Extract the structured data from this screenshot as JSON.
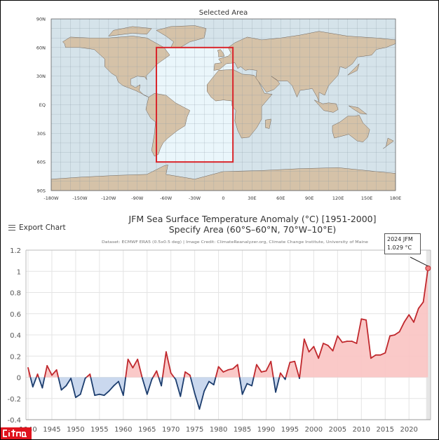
{
  "map": {
    "title": "Selected Area",
    "lat_labels": [
      "90N",
      "60N",
      "30N",
      "EQ",
      "30S",
      "60S",
      "90S"
    ],
    "lon_labels": [
      "-180W",
      "-150W",
      "-120W",
      "-90W",
      "-60W",
      "-30W",
      "0",
      "30E",
      "60E",
      "90E",
      "120E",
      "150E",
      "180E"
    ],
    "selection": {
      "lat_min": -60,
      "lat_max": 60,
      "lon_min": -70,
      "lon_max": 10
    },
    "colors": {
      "ocean": "#d5e3ea",
      "land": "#d5c2a8",
      "selection": "#d9242a"
    }
  },
  "toolbar": {
    "export_label": "Export Chart"
  },
  "watermark": "citna",
  "chart_data": {
    "type": "area",
    "title": "JFM Sea Surface Temperature Anomaly (°C) [1951-2000]",
    "subtitle": "Specify Area (60°S–60°N, 70°W–10°E)",
    "credit": "Dataset: ECMWF ERA5 (0.5x0.5 deg) | Image Credit: ClimateReanalyzer.org, Climate Change Institute, University of Maine",
    "xlabel": "",
    "ylabel": "",
    "xlim": [
      1940,
      2024
    ],
    "ylim": [
      -0.4,
      1.2
    ],
    "yticks": [
      "1.2",
      "1",
      "0.8",
      "0.6",
      "0.4",
      "0.2",
      "0",
      "-0.2",
      "-0.4"
    ],
    "ytick_values": [
      1.2,
      1,
      0.8,
      0.6,
      0.4,
      0.2,
      0,
      -0.2,
      -0.4
    ],
    "xticks": [
      "1940",
      "1945",
      "1950",
      "1955",
      "1960",
      "1965",
      "1970",
      "1975",
      "1980",
      "1985",
      "1990",
      "1995",
      "2000",
      "2005",
      "2010",
      "2015",
      "2020"
    ],
    "grid": true,
    "colors": {
      "positive_line": "#c0282d",
      "positive_fill": "#f9c3c2",
      "negative_line": "#1c3d6e",
      "negative_fill": "#c4d4ec"
    },
    "x": [
      1940,
      1941,
      1942,
      1943,
      1944,
      1945,
      1946,
      1947,
      1948,
      1949,
      1950,
      1951,
      1952,
      1953,
      1954,
      1955,
      1956,
      1957,
      1958,
      1959,
      1960,
      1961,
      1962,
      1963,
      1964,
      1965,
      1966,
      1967,
      1968,
      1969,
      1970,
      1971,
      1972,
      1973,
      1974,
      1975,
      1976,
      1977,
      1978,
      1979,
      1980,
      1981,
      1982,
      1983,
      1984,
      1985,
      1986,
      1987,
      1988,
      1989,
      1990,
      1991,
      1992,
      1993,
      1994,
      1995,
      1996,
      1997,
      1998,
      1999,
      2000,
      2001,
      2002,
      2003,
      2004,
      2005,
      2006,
      2007,
      2008,
      2009,
      2010,
      2011,
      2012,
      2013,
      2014,
      2015,
      2016,
      2017,
      2018,
      2019,
      2020,
      2021,
      2022,
      2023,
      2024
    ],
    "values": [
      0.09,
      -0.09,
      0.03,
      -0.1,
      0.11,
      0.02,
      0.07,
      -0.12,
      -0.08,
      -0.01,
      -0.19,
      -0.16,
      -0.01,
      0.03,
      -0.17,
      -0.16,
      -0.17,
      -0.13,
      -0.08,
      -0.04,
      -0.17,
      0.17,
      0.09,
      0.17,
      -0.01,
      -0.16,
      -0.02,
      0.06,
      -0.08,
      0.24,
      0.04,
      -0.02,
      -0.18,
      0.05,
      0.02,
      -0.15,
      -0.3,
      -0.13,
      -0.04,
      -0.07,
      0.1,
      0.05,
      0.07,
      0.08,
      0.12,
      -0.16,
      -0.06,
      -0.08,
      0.12,
      0.05,
      0.06,
      0.15,
      -0.14,
      0.04,
      -0.02,
      0.14,
      0.15,
      -0.01,
      0.36,
      0.24,
      0.29,
      0.18,
      0.32,
      0.3,
      0.25,
      0.39,
      0.33,
      0.34,
      0.34,
      0.32,
      0.55,
      0.54,
      0.18,
      0.21,
      0.21,
      0.23,
      0.39,
      0.4,
      0.43,
      0.52,
      0.59,
      0.52,
      0.65,
      0.71,
      1.029
    ],
    "annotation": {
      "year": 2024,
      "label": "2024 JFM",
      "value_text": "1.029 °C"
    }
  }
}
